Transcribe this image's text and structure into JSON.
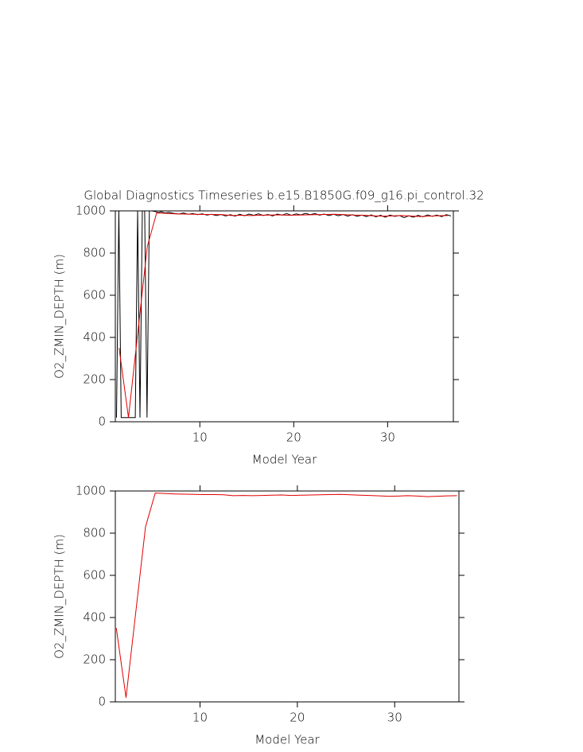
{
  "chart_data": [
    {
      "type": "line",
      "title": "Global Diagnostics Timeseries b.e15.B1850G.f09_g16.pi_control.32",
      "x_label": "Model Year",
      "y_label": "O2_ZMIN_DEPTH (m)",
      "xlim": [
        1,
        37
      ],
      "xticks": [
        10,
        20,
        30
      ],
      "ylim": [
        0,
        1000
      ],
      "yticks": [
        0,
        200,
        400,
        600,
        800,
        1000
      ],
      "series": [
        {
          "color": "#000000",
          "x": [
            1.125,
            1.375,
            1.625,
            1.875,
            2.125,
            2.375,
            2.625,
            2.875,
            3.125,
            3.375,
            3.625,
            3.875,
            4.125,
            4.375,
            4.625,
            4.875,
            5.125,
            5.375,
            5.625,
            5.875,
            6.25,
            6.75,
            7.25,
            7.75,
            8.25,
            8.75,
            9.25,
            9.75,
            10.25,
            10.75,
            11.25,
            11.75,
            12.25,
            12.75,
            13.25,
            13.75,
            14.25,
            14.75,
            15.25,
            15.75,
            16.25,
            16.75,
            17.25,
            17.75,
            18.25,
            18.75,
            19.25,
            19.75,
            20.25,
            20.75,
            21.25,
            21.75,
            22.25,
            22.75,
            23.25,
            23.75,
            24.25,
            24.75,
            25.25,
            25.75,
            26.25,
            26.75,
            27.25,
            27.75,
            28.25,
            28.75,
            29.25,
            29.75,
            30.25,
            30.75,
            31.25,
            31.75,
            32.25,
            32.75,
            33.25,
            33.75,
            34.25,
            34.75,
            35.25,
            35.75,
            36.25,
            36.75
          ],
          "values": [
            20,
            1000,
            20,
            20,
            20,
            20,
            20,
            20,
            20,
            1000,
            20,
            1000,
            1000,
            20,
            1000,
            1000,
            998,
            995,
            992,
            996,
            990,
            993,
            988,
            985,
            990,
            984,
            987,
            982,
            986,
            980,
            984,
            978,
            983,
            976,
            982,
            975,
            984,
            977,
            985,
            979,
            986,
            978,
            983,
            976,
            985,
            980,
            987,
            979,
            986,
            981,
            988,
            982,
            987,
            980,
            985,
            978,
            984,
            977,
            983,
            975,
            982,
            974,
            980,
            973,
            981,
            972,
            979,
            970,
            980,
            974,
            978,
            968,
            977,
            970,
            979,
            972,
            981,
            974,
            980,
            973,
            982,
            976
          ]
        },
        {
          "color": "#e00000",
          "x": [
            1.4,
            2.4,
            3.4,
            4.4,
            5.4,
            6.4,
            7.4,
            8.4,
            9.4,
            10.4,
            11.4,
            12.4,
            13.4,
            14.4,
            15.4,
            16.4,
            17.4,
            18.4,
            19.4,
            20.4,
            21.4,
            22.4,
            23.4,
            24.4,
            25.4,
            26.4,
            27.4,
            28.4,
            29.4,
            30.4,
            31.4,
            32.4,
            33.4,
            34.4,
            35.4,
            36.4
          ],
          "values": [
            350,
            20,
            425,
            830,
            990,
            988,
            986,
            985,
            984,
            983,
            983,
            982,
            978,
            979,
            978,
            979,
            980,
            981,
            979,
            980,
            981,
            982,
            983,
            984,
            982,
            980,
            979,
            977,
            975,
            976,
            978,
            976,
            973,
            975,
            977,
            978
          ]
        }
      ]
    },
    {
      "type": "line",
      "x_label": "Model Year",
      "y_label": "O2_ZMIN_DEPTH (m)",
      "xlim": [
        1.3,
        36.6
      ],
      "xticks": [
        10,
        20,
        30
      ],
      "ylim": [
        0,
        1000
      ],
      "yticks": [
        0,
        200,
        400,
        600,
        800,
        1000
      ],
      "series": [
        {
          "color": "#e00000",
          "x": [
            1.4,
            2.4,
            3.4,
            4.4,
            5.4,
            6.4,
            7.4,
            8.4,
            9.4,
            10.4,
            11.4,
            12.4,
            13.4,
            14.4,
            15.4,
            16.4,
            17.4,
            18.4,
            19.4,
            20.4,
            21.4,
            22.4,
            23.4,
            24.4,
            25.4,
            26.4,
            27.4,
            28.4,
            29.4,
            30.4,
            31.4,
            32.4,
            33.4,
            34.4,
            35.4,
            36.4
          ],
          "values": [
            350,
            20,
            425,
            830,
            990,
            988,
            986,
            985,
            984,
            983,
            983,
            982,
            978,
            979,
            978,
            979,
            980,
            981,
            979,
            980,
            981,
            982,
            983,
            984,
            982,
            980,
            979,
            977,
            975,
            976,
            978,
            976,
            973,
            975,
            977,
            978
          ]
        }
      ]
    }
  ]
}
